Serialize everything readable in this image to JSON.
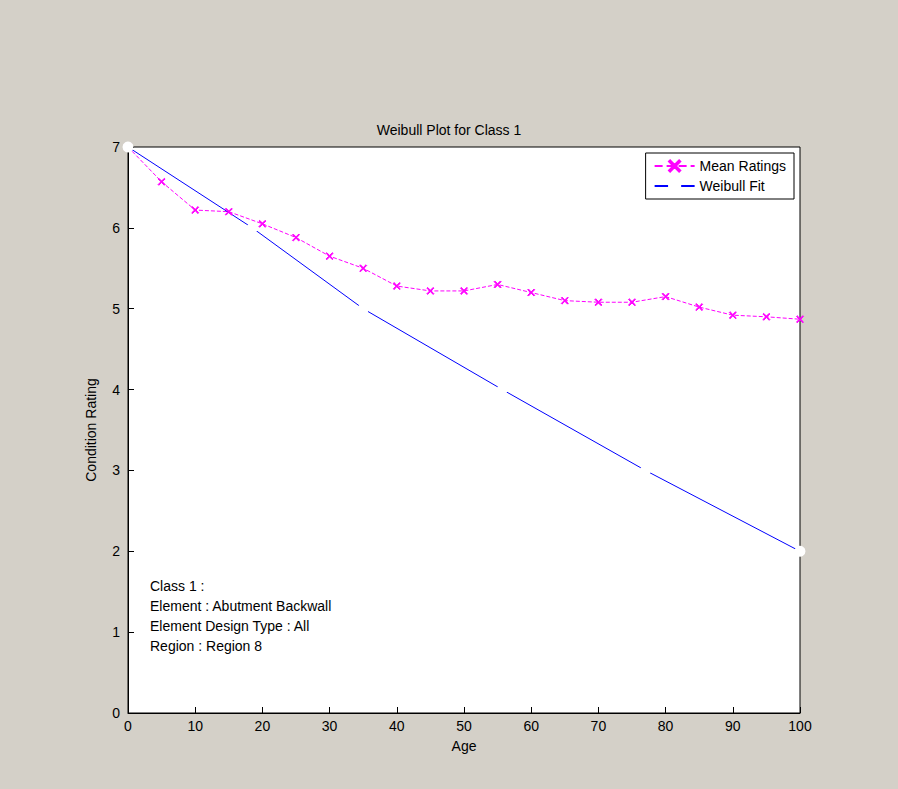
{
  "chart_data": {
    "type": "line",
    "title": "Weibull Plot for Class 1",
    "x_label": "Age",
    "y_label": "Condition Rating",
    "xlim": [
      0,
      100
    ],
    "xticks": [
      0,
      10,
      20,
      30,
      40,
      50,
      60,
      70,
      80,
      90,
      100
    ],
    "ylim": [
      0,
      7
    ],
    "yticks": [
      0,
      1,
      2,
      3,
      4,
      5,
      6,
      7
    ],
    "grid": false,
    "legend": "northeast",
    "annotation": [
      "Class 1 :",
      "Element : Abutment Backwall",
      "Element Design Type : All",
      "Region : Region 8"
    ],
    "series": [
      {
        "name": "Mean Ratings",
        "color": "#ff00ff",
        "marker": "x",
        "line_style": "dashed",
        "x": [
          0,
          5,
          10,
          15,
          20,
          25,
          30,
          35,
          40,
          45,
          50,
          55,
          60,
          65,
          70,
          75,
          80,
          85,
          90,
          95,
          100
        ],
        "values": [
          7.0,
          6.57,
          6.22,
          6.2,
          6.05,
          5.88,
          5.65,
          5.5,
          5.28,
          5.22,
          5.22,
          5.3,
          5.2,
          5.1,
          5.08,
          5.08,
          5.15,
          5.02,
          4.92,
          4.9,
          4.87
        ]
      },
      {
        "name": "Weibull Fit",
        "color": "#0000ff",
        "marker": "o",
        "line_style": "solid",
        "x": [
          0,
          18.5,
          35,
          55.7,
          77,
          100
        ],
        "values": [
          7,
          6,
          5,
          4,
          3,
          2
        ]
      }
    ]
  }
}
